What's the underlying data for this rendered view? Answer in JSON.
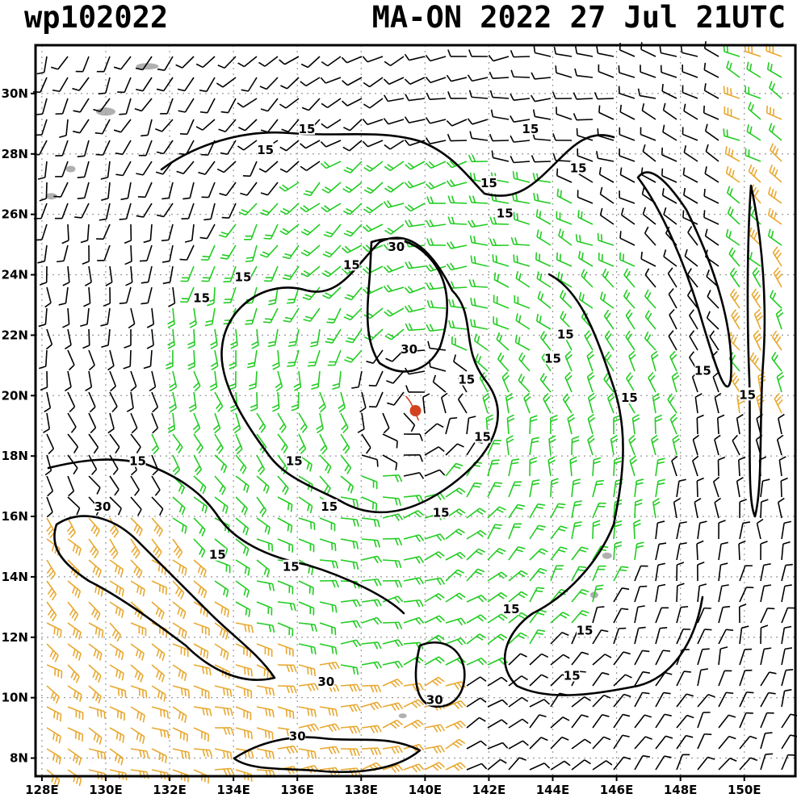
{
  "header": {
    "storm_id": "wp102022",
    "storm_time": "MA-ON 2022 27 Jul 21UTC"
  },
  "map": {
    "lat_range": [
      7.4,
      31.6
    ],
    "lon_range": [
      127.8,
      151.6
    ],
    "lat_ticks": [
      "8N",
      "10N",
      "12N",
      "14N",
      "16N",
      "18N",
      "20N",
      "22N",
      "24N",
      "26N",
      "28N",
      "30N"
    ],
    "lon_ticks": [
      "128E",
      "130E",
      "132E",
      "134E",
      "136E",
      "138E",
      "140E",
      "142E",
      "144E",
      "146E",
      "148E",
      "150E"
    ],
    "gridlines": "dotted",
    "colors": {
      "calm_barbs": "#000000",
      "moderate_barbs": "#22cc22",
      "strong_barbs": "#e8a830",
      "contour": "#000000",
      "storm_center": "#d2421e",
      "land": "#b0b0b0"
    },
    "storm_center": {
      "lat": 19.5,
      "lon": 139.7
    },
    "contour_labels": [
      {
        "text": "15",
        "lat": 28.8,
        "lon": 136.3
      },
      {
        "text": "15",
        "lat": 28.1,
        "lon": 135.0
      },
      {
        "text": "15",
        "lat": 28.8,
        "lon": 143.3
      },
      {
        "text": "15",
        "lat": 27.5,
        "lon": 144.8
      },
      {
        "text": "15",
        "lat": 27.0,
        "lon": 142.0
      },
      {
        "text": "15",
        "lat": 26.0,
        "lon": 142.5
      },
      {
        "text": "15",
        "lat": 24.3,
        "lon": 137.7
      },
      {
        "text": "15",
        "lat": 23.9,
        "lon": 134.3
      },
      {
        "text": "15",
        "lat": 23.2,
        "lon": 133.0
      },
      {
        "text": "30",
        "lat": 24.9,
        "lon": 139.1
      },
      {
        "text": "30",
        "lat": 21.5,
        "lon": 139.5
      },
      {
        "text": "15",
        "lat": 22.0,
        "lon": 144.4
      },
      {
        "text": "15",
        "lat": 21.2,
        "lon": 144.0
      },
      {
        "text": "15",
        "lat": 20.8,
        "lon": 148.7
      },
      {
        "text": "15",
        "lat": 20.0,
        "lon": 150.1
      },
      {
        "text": "15",
        "lat": 19.9,
        "lon": 146.4
      },
      {
        "text": "15",
        "lat": 20.5,
        "lon": 141.3
      },
      {
        "text": "15",
        "lat": 18.6,
        "lon": 141.8
      },
      {
        "text": "15",
        "lat": 17.8,
        "lon": 135.9
      },
      {
        "text": "15",
        "lat": 17.8,
        "lon": 131.0
      },
      {
        "text": "15",
        "lat": 16.3,
        "lon": 137.0
      },
      {
        "text": "15",
        "lat": 16.1,
        "lon": 140.5
      },
      {
        "text": "30",
        "lat": 16.3,
        "lon": 129.9
      },
      {
        "text": "15",
        "lat": 14.7,
        "lon": 133.5
      },
      {
        "text": "15",
        "lat": 14.3,
        "lon": 135.8
      },
      {
        "text": "15",
        "lat": 12.9,
        "lon": 142.7
      },
      {
        "text": "15",
        "lat": 12.2,
        "lon": 145.0
      },
      {
        "text": "15",
        "lat": 10.7,
        "lon": 144.6
      },
      {
        "text": "30",
        "lat": 10.5,
        "lon": 136.9
      },
      {
        "text": "30",
        "lat": 9.9,
        "lon": 140.3
      },
      {
        "text": "30",
        "lat": 8.7,
        "lon": 136.0
      }
    ]
  }
}
